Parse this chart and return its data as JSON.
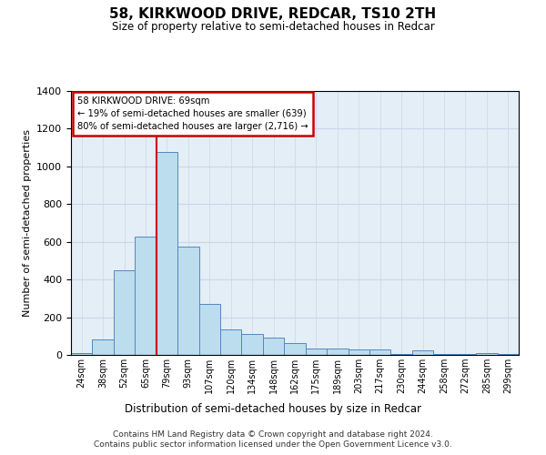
{
  "title": "58, KIRKWOOD DRIVE, REDCAR, TS10 2TH",
  "subtitle": "Size of property relative to semi-detached houses in Redcar",
  "xlabel": "Distribution of semi-detached houses by size in Redcar",
  "ylabel": "Number of semi-detached properties",
  "footer1": "Contains HM Land Registry data © Crown copyright and database right 2024.",
  "footer2": "Contains public sector information licensed under the Open Government Licence v3.0.",
  "annotation_title": "58 KIRKWOOD DRIVE: 69sqm",
  "annotation_line1": "← 19% of semi-detached houses are smaller (639)",
  "annotation_line2": "80% of semi-detached houses are larger (2,716) →",
  "bar_edge_color": "#5588bb",
  "bar_face_color": "#bbddee",
  "marker_color": "#cc0000",
  "categories": [
    "24sqm",
    "38sqm",
    "52sqm",
    "65sqm",
    "79sqm",
    "93sqm",
    "107sqm",
    "120sqm",
    "134sqm",
    "148sqm",
    "162sqm",
    "175sqm",
    "189sqm",
    "203sqm",
    "217sqm",
    "230sqm",
    "244sqm",
    "258sqm",
    "272sqm",
    "285sqm",
    "299sqm"
  ],
  "values": [
    10,
    80,
    450,
    630,
    1075,
    575,
    270,
    135,
    110,
    90,
    65,
    35,
    35,
    30,
    30,
    5,
    25,
    5,
    5,
    10,
    5
  ],
  "ylim": [
    0,
    1400
  ],
  "yticks": [
    0,
    200,
    400,
    600,
    800,
    1000,
    1200,
    1400
  ],
  "grid_color": "#c8d8e8",
  "bg_color": "#e4eef6",
  "red_line_bar_index": 3.5,
  "fig_width": 6.0,
  "fig_height": 5.0,
  "fig_dpi": 100
}
